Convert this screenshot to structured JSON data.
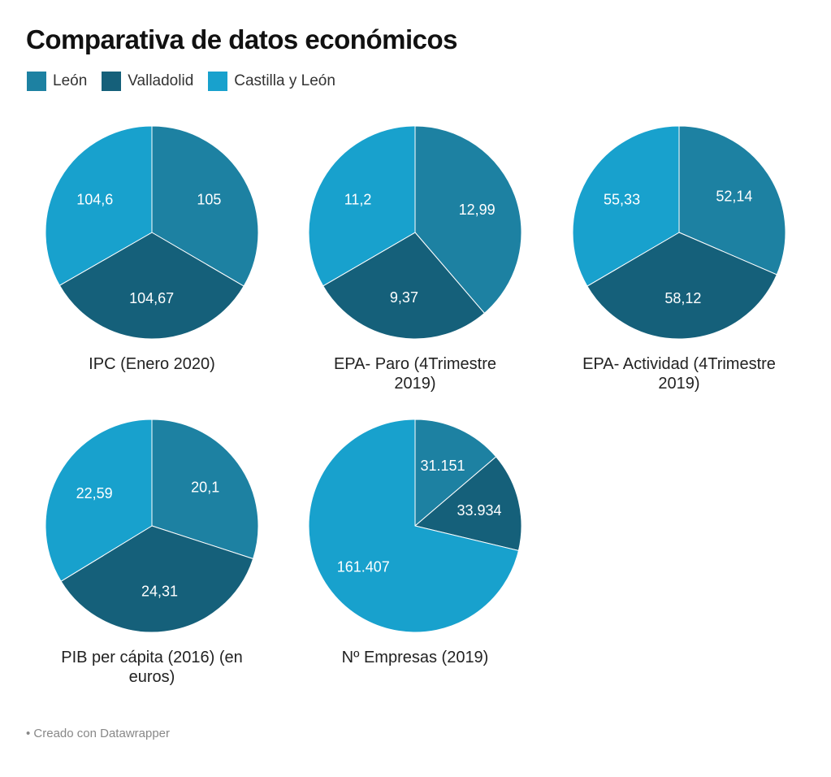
{
  "chart_data": {
    "type": "pie",
    "title": "Comparativa de datos económicos",
    "legend": {
      "placement": "top-left",
      "entries": [
        {
          "name": "León",
          "color": "#1d81a2"
        },
        {
          "name": "Valladolid",
          "color": "#15607a"
        },
        {
          "name": "Castilla y León",
          "color": "#18a1cd"
        }
      ]
    },
    "categories": [
      "León",
      "Valladolid",
      "Castilla y León"
    ],
    "charts": [
      {
        "title_lines": [
          "IPC (Enero 2020)"
        ],
        "values": [
          105,
          104.67,
          104.6
        ],
        "labels": [
          "105",
          "104,67",
          "104,6"
        ]
      },
      {
        "title_lines": [
          "EPA- Paro (4Trimestre",
          "2019)"
        ],
        "values": [
          12.99,
          9.37,
          11.2
        ],
        "labels": [
          "12,99",
          "9,37",
          "11,2"
        ]
      },
      {
        "title_lines": [
          "EPA- Actividad (4Trimestre",
          "2019)"
        ],
        "values": [
          52.14,
          58.12,
          55.33
        ],
        "labels": [
          "52,14",
          "58,12",
          "55,33"
        ]
      },
      {
        "title_lines": [
          "PIB per cápita (2016) (en",
          "euros)"
        ],
        "values": [
          20.1,
          24.31,
          22.59
        ],
        "labels": [
          "20,1",
          "24,31",
          "22,59"
        ]
      },
      {
        "title_lines": [
          "Nº Empresas (2019)"
        ],
        "values": [
          31151,
          33934,
          161407
        ],
        "labels": [
          "31.151",
          "33.934",
          "161.407"
        ]
      }
    ]
  },
  "footer": {
    "text": "• Creado con Datawrapper"
  }
}
